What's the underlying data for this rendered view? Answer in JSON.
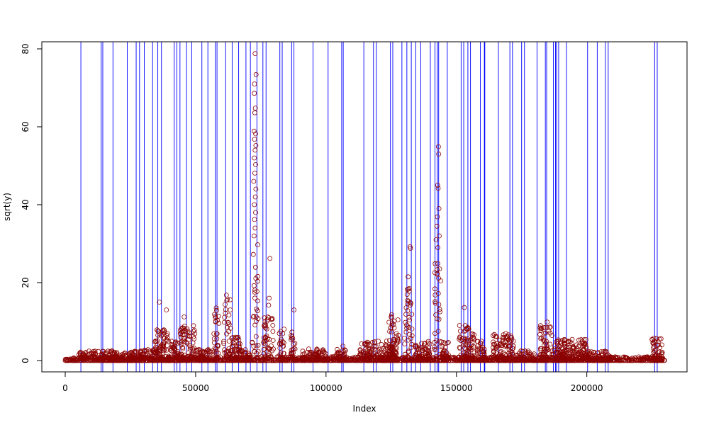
{
  "chart_data": {
    "type": "scatter",
    "title": "",
    "xlabel": "Index",
    "ylabel": "sqrt(y)",
    "xlim": [
      0,
      230000
    ],
    "ylim": [
      0,
      80
    ],
    "x_ticks": [
      0,
      50000,
      100000,
      150000,
      200000
    ],
    "x_tick_labels": [
      "0",
      "50000",
      "100000",
      "150000",
      "200000"
    ],
    "y_ticks": [
      0,
      20,
      40,
      60,
      80
    ],
    "y_tick_labels": [
      "0",
      "20",
      "40",
      "60",
      "80"
    ],
    "grid": false,
    "colors": {
      "points": "#8b0000",
      "vlines": "#0000ff",
      "axis": "#000000"
    },
    "clusters": [
      {
        "x0": 0,
        "x1": 230000,
        "ymax": 1.0
      },
      {
        "x0": 5000,
        "x1": 30000,
        "ymax": 2.5
      },
      {
        "x0": 30000,
        "x1": 34000,
        "ymax": 3.0
      },
      {
        "x0": 34000,
        "x1": 40000,
        "ymax": 8.0
      },
      {
        "x0": 40000,
        "x1": 44000,
        "ymax": 5.0
      },
      {
        "x0": 44000,
        "x1": 50000,
        "ymax": 9.0
      },
      {
        "x0": 50000,
        "x1": 57000,
        "ymax": 3.0
      },
      {
        "x0": 57000,
        "x1": 59000,
        "ymax": 13.0
      },
      {
        "x0": 60500,
        "x1": 63500,
        "ymax": 16.5
      },
      {
        "x0": 63500,
        "x1": 67000,
        "ymax": 6.0
      },
      {
        "x0": 67000,
        "x1": 71000,
        "ymax": 3.0
      },
      {
        "x0": 71500,
        "x1": 74000,
        "ymax": 30.0
      },
      {
        "x0": 76000,
        "x1": 80000,
        "ymax": 11.5
      },
      {
        "x0": 82000,
        "x1": 84000,
        "ymax": 9.0
      },
      {
        "x0": 86500,
        "x1": 88500,
        "ymax": 8.0
      },
      {
        "x0": 91000,
        "x1": 100000,
        "ymax": 3.0
      },
      {
        "x0": 104000,
        "x1": 108000,
        "ymax": 3.0
      },
      {
        "x0": 113000,
        "x1": 127000,
        "ymax": 5.0
      },
      {
        "x0": 124000,
        "x1": 128000,
        "ymax": 11.5
      },
      {
        "x0": 130000,
        "x1": 133000,
        "ymax": 20.0
      },
      {
        "x0": 134000,
        "x1": 140000,
        "ymax": 5.0
      },
      {
        "x0": 141500,
        "x1": 144000,
        "ymax": 25.0
      },
      {
        "x0": 144000,
        "x1": 147000,
        "ymax": 5.0
      },
      {
        "x0": 151000,
        "x1": 157000,
        "ymax": 9.0
      },
      {
        "x0": 158000,
        "x1": 161000,
        "ymax": 5.0
      },
      {
        "x0": 164000,
        "x1": 172000,
        "ymax": 7.0
      },
      {
        "x0": 172000,
        "x1": 180000,
        "ymax": 2.5
      },
      {
        "x0": 182000,
        "x1": 187000,
        "ymax": 9.0
      },
      {
        "x0": 187000,
        "x1": 200000,
        "ymax": 5.5
      },
      {
        "x0": 200000,
        "x1": 209000,
        "ymax": 2.5
      },
      {
        "x0": 225000,
        "x1": 229000,
        "ymax": 6.0
      }
    ],
    "outliers": [
      {
        "x": 72800,
        "y": 78.8
      },
      {
        "x": 73200,
        "y": 73.4
      },
      {
        "x": 72600,
        "y": 71.0
      },
      {
        "x": 72500,
        "y": 68.6
      },
      {
        "x": 72900,
        "y": 64.8
      },
      {
        "x": 72700,
        "y": 63.6
      },
      {
        "x": 72400,
        "y": 58.9
      },
      {
        "x": 73000,
        "y": 58.2
      },
      {
        "x": 72600,
        "y": 56.8
      },
      {
        "x": 73100,
        "y": 55.2
      },
      {
        "x": 72800,
        "y": 54.0
      },
      {
        "x": 72500,
        "y": 52.0
      },
      {
        "x": 73000,
        "y": 50.3
      },
      {
        "x": 72700,
        "y": 48.1
      },
      {
        "x": 72300,
        "y": 46.0
      },
      {
        "x": 73100,
        "y": 44.0
      },
      {
        "x": 72900,
        "y": 42.0
      },
      {
        "x": 72500,
        "y": 40.0
      },
      {
        "x": 73000,
        "y": 38.0
      },
      {
        "x": 72600,
        "y": 36.2
      },
      {
        "x": 72800,
        "y": 34.0
      },
      {
        "x": 72400,
        "y": 32.0
      },
      {
        "x": 78500,
        "y": 26.2
      },
      {
        "x": 36100,
        "y": 15.0
      },
      {
        "x": 38800,
        "y": 13.0
      },
      {
        "x": 45600,
        "y": 11.2
      },
      {
        "x": 57900,
        "y": 13.5
      },
      {
        "x": 61800,
        "y": 16.8
      },
      {
        "x": 78200,
        "y": 16.0
      },
      {
        "x": 78000,
        "y": 14.2
      },
      {
        "x": 87700,
        "y": 13.0
      },
      {
        "x": 125200,
        "y": 11.8
      },
      {
        "x": 131500,
        "y": 21.5
      },
      {
        "x": 132200,
        "y": 29.2
      },
      {
        "x": 132400,
        "y": 28.8
      },
      {
        "x": 143100,
        "y": 54.9
      },
      {
        "x": 143200,
        "y": 53.0
      },
      {
        "x": 142800,
        "y": 45.0
      },
      {
        "x": 143000,
        "y": 44.2
      },
      {
        "x": 143300,
        "y": 39.0
      },
      {
        "x": 142700,
        "y": 36.9
      },
      {
        "x": 142500,
        "y": 34.5
      },
      {
        "x": 143400,
        "y": 32.0
      },
      {
        "x": 142200,
        "y": 31.0
      },
      {
        "x": 142900,
        "y": 29.0
      },
      {
        "x": 153000,
        "y": 13.6
      },
      {
        "x": 184800,
        "y": 9.9
      },
      {
        "x": 106500,
        "y": 3.7
      }
    ],
    "vlines": [
      6000,
      13800,
      14400,
      18300,
      23800,
      27200,
      28500,
      30300,
      33500,
      35500,
      36900,
      41800,
      42800,
      44000,
      46500,
      48500,
      52400,
      54700,
      57500,
      58200,
      61500,
      64000,
      66500,
      69300,
      71000,
      73500,
      75800,
      77000,
      82300,
      83200,
      86800,
      87700,
      95000,
      100800,
      106000,
      106600,
      114500,
      118200,
      119300,
      124700,
      125600,
      129100,
      131000,
      132700,
      134400,
      136300,
      140000,
      141800,
      142700,
      143200,
      146500,
      151800,
      152800,
      154400,
      155400,
      159200,
      160700,
      160900,
      166100,
      170500,
      171500,
      175000,
      176100,
      180900,
      184100,
      184600,
      187200,
      188000,
      188400,
      189200,
      192200,
      200300,
      204000,
      207100,
      208200,
      226000,
      227000
    ]
  }
}
